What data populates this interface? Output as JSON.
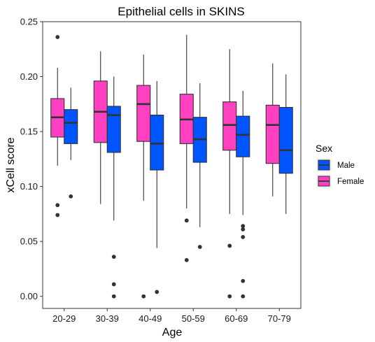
{
  "chart_data": {
    "type": "boxplot",
    "title": "Epithelial cells in SKINS",
    "xlabel": "Age",
    "ylabel": "xCell score",
    "ylim": [
      -0.011,
      0.25
    ],
    "yticks": [
      0.0,
      0.05,
      0.1,
      0.15,
      0.2,
      0.25
    ],
    "ytick_labels": [
      "0.00",
      "0.05",
      "0.10",
      "0.15",
      "0.20",
      "0.25"
    ],
    "categories": [
      "20-29",
      "30-39",
      "40-49",
      "50-59",
      "60-69",
      "70-79"
    ],
    "grid": false,
    "legend": {
      "title": "Sex",
      "position": "right"
    },
    "series": [
      {
        "name": "Female",
        "color": "#FF40C0",
        "boxes": [
          {
            "min": 0.119,
            "q1": 0.145,
            "median": 0.163,
            "q3": 0.18,
            "max": 0.208,
            "outliers": [
              0.236,
              0.083,
              0.074
            ]
          },
          {
            "min": 0.084,
            "q1": 0.14,
            "median": 0.168,
            "q3": 0.196,
            "max": 0.223,
            "outliers": []
          },
          {
            "min": 0.087,
            "q1": 0.141,
            "median": 0.175,
            "q3": 0.192,
            "max": 0.22,
            "outliers": [
              0.0
            ]
          },
          {
            "min": 0.08,
            "q1": 0.139,
            "median": 0.161,
            "q3": 0.184,
            "max": 0.238,
            "outliers": [
              0.069,
              0.033
            ]
          },
          {
            "min": 0.075,
            "q1": 0.133,
            "median": 0.156,
            "q3": 0.177,
            "max": 0.225,
            "outliers": [
              0.046,
              0.0
            ]
          },
          {
            "min": 0.091,
            "q1": 0.121,
            "median": 0.156,
            "q3": 0.174,
            "max": 0.212,
            "outliers": []
          }
        ]
      },
      {
        "name": "Male",
        "color": "#0055FF",
        "boxes": [
          {
            "min": 0.124,
            "q1": 0.139,
            "median": 0.158,
            "q3": 0.17,
            "max": 0.19,
            "outliers": [
              0.091
            ]
          },
          {
            "min": 0.069,
            "q1": 0.131,
            "median": 0.165,
            "q3": 0.173,
            "max": 0.2,
            "outliers": [
              0.036,
              0.011,
              0.0
            ]
          },
          {
            "min": 0.044,
            "q1": 0.115,
            "median": 0.139,
            "q3": 0.165,
            "max": 0.196,
            "outliers": [
              0.004
            ]
          },
          {
            "min": 0.063,
            "q1": 0.122,
            "median": 0.143,
            "q3": 0.163,
            "max": 0.194,
            "outliers": [
              0.045
            ]
          },
          {
            "min": 0.074,
            "q1": 0.127,
            "median": 0.147,
            "q3": 0.164,
            "max": 0.187,
            "outliers": [
              0.064,
              0.061,
              0.054,
              0.014,
              0.0
            ]
          },
          {
            "min": 0.075,
            "q1": 0.112,
            "median": 0.133,
            "q3": 0.172,
            "max": 0.202,
            "outliers": []
          }
        ]
      }
    ]
  }
}
